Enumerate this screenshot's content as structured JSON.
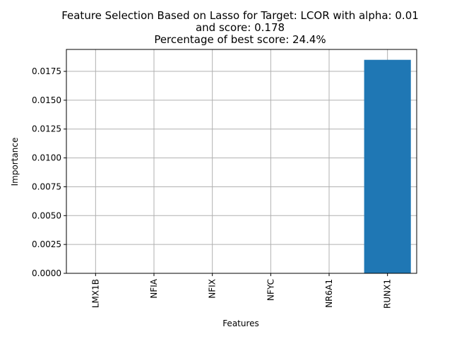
{
  "chart_data": {
    "type": "bar",
    "title_lines": [
      "Feature Selection Based on Lasso for Target: LCOR with alpha: 0.01",
      "and score: 0.178",
      "Percentage of best score: 24.4%"
    ],
    "xlabel": "Features",
    "ylabel": "Importance",
    "categories": [
      "LMX1B",
      "NFIA",
      "NFIX",
      "NFYC",
      "NR6A1",
      "RUNX1"
    ],
    "values": [
      0.0,
      0.0,
      0.0,
      0.0,
      0.0,
      0.0185
    ],
    "ylim": [
      0,
      0.0194
    ],
    "yticks": [
      "0.0000",
      "0.0025",
      "0.0050",
      "0.0075",
      "0.0100",
      "0.0125",
      "0.0150",
      "0.0175"
    ],
    "grid": true,
    "bar_color": "#1f77b4",
    "grid_color": "#b0b0b0"
  }
}
